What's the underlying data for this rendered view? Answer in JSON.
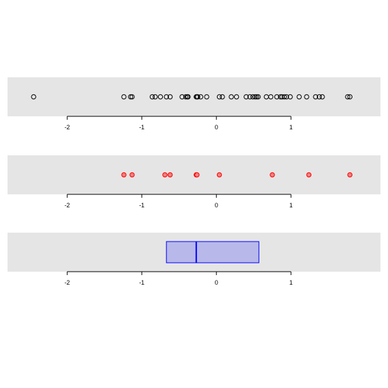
{
  "chart_data": [
    {
      "type": "scatter",
      "subtype": "strip",
      "x": [
        -2.45,
        -1.24,
        -1.15,
        -1.13,
        -0.86,
        -0.82,
        -0.75,
        -0.67,
        -0.62,
        -0.46,
        -0.41,
        -0.39,
        -0.38,
        -0.27,
        -0.26,
        -0.25,
        -0.21,
        -0.13,
        0.04,
        0.08,
        0.2,
        0.27,
        0.4,
        0.45,
        0.49,
        0.52,
        0.54,
        0.56,
        0.67,
        0.73,
        0.81,
        0.86,
        0.88,
        0.91,
        0.94,
        0.99,
        1.11,
        1.21,
        1.33,
        1.38,
        1.42,
        1.76,
        1.79
      ],
      "xticks": [
        "-2",
        "-1",
        "0",
        "1"
      ],
      "xlim": [
        -2.8,
        2.2
      ],
      "marker": "open-circle",
      "color": "#000000",
      "background": "#e5e5e5",
      "grid": false
    },
    {
      "type": "scatter",
      "subtype": "strip",
      "x": [
        -1.24,
        -1.13,
        -0.69,
        -0.62,
        -0.27,
        -0.26,
        0.04,
        0.75,
        1.24,
        1.79
      ],
      "xticks": [
        "-2",
        "-1",
        "0",
        "1"
      ],
      "xlim": [
        -2.8,
        2.2
      ],
      "marker": "filled-circle",
      "color": "#ff0000",
      "fill": "#f08080",
      "background": "#e5e5e5",
      "grid": false
    },
    {
      "type": "box",
      "q1": -0.67,
      "median": -0.27,
      "q3": 0.57,
      "xticks": [
        "-2",
        "-1",
        "0",
        "1"
      ],
      "xlim": [
        -2.8,
        2.2
      ],
      "color": "#0000ff",
      "fill": "#b8b8ea",
      "background": "#e5e5e5",
      "grid": false
    }
  ]
}
